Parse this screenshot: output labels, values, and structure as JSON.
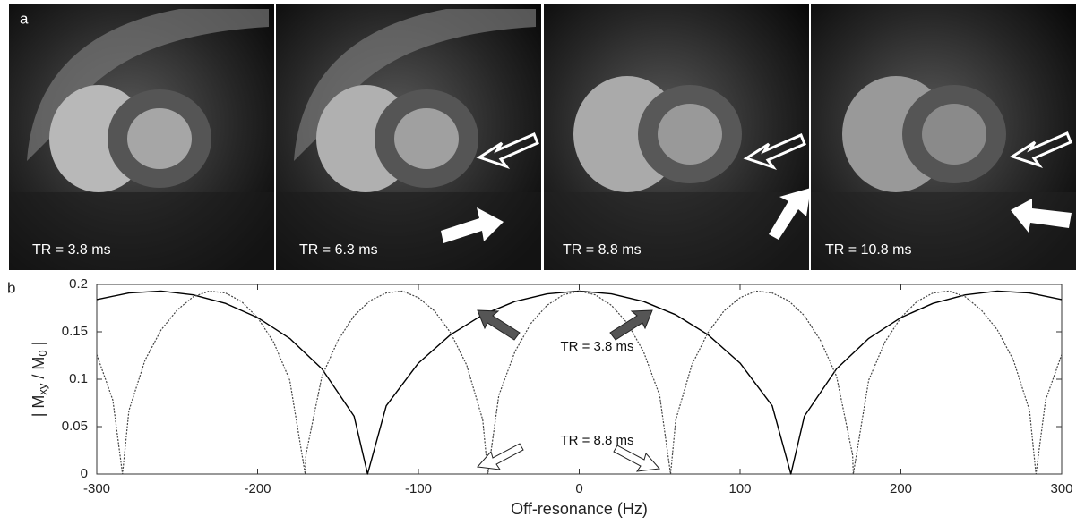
{
  "figure": {
    "panel_a_label": "a",
    "panel_b_label": "b",
    "captions": [
      "TR =  3.8 ms",
      "TR =  6.3 ms",
      "TR =  8.8 ms",
      "TR =  10.8 ms"
    ]
  },
  "chart_data": {
    "type": "line",
    "xlabel": "Off-resonance (Hz)",
    "ylabel": [
      "| M",
      "xy",
      " / M",
      "0",
      " |"
    ],
    "xlim": [
      -300,
      300
    ],
    "xticks": [
      -300,
      -200,
      -100,
      0,
      100,
      200,
      300
    ],
    "ylim": [
      0,
      0.2
    ],
    "yticks": [
      0,
      0.05,
      0.1,
      0.15,
      0.2
    ],
    "grid": false,
    "annotations": [
      "TR = 3.8 ms",
      "TR = 8.8 ms"
    ],
    "series": [
      {
        "color": "#000000",
        "dash": false,
        "x": [
          -300,
          -280,
          -260,
          -240,
          -220,
          -200,
          -180,
          -160,
          -140,
          -131.6,
          -120,
          -100,
          -80,
          -60,
          -40,
          -20,
          0,
          20,
          40,
          60,
          80,
          100,
          120,
          131.6,
          140,
          160,
          180,
          200,
          220,
          240,
          260,
          280,
          300
        ],
        "values": [
          0.184,
          0.191,
          0.193,
          0.189,
          0.18,
          0.165,
          0.143,
          0.111,
          0.061,
          0,
          0.072,
          0.117,
          0.147,
          0.168,
          0.182,
          0.19,
          0.193,
          0.19,
          0.182,
          0.168,
          0.147,
          0.117,
          0.072,
          0,
          0.061,
          0.111,
          0.143,
          0.165,
          0.18,
          0.189,
          0.193,
          0.191,
          0.184
        ]
      },
      {
        "color": "#444444",
        "dash": true,
        "x": [
          -300,
          -290,
          -284,
          -280,
          -270,
          -260,
          -250,
          -240,
          -230,
          -220,
          -210,
          -200,
          -190,
          -180,
          -170.4,
          -170,
          -160,
          -150,
          -140,
          -130,
          -120,
          -110,
          -100,
          -90,
          -80,
          -70,
          -60,
          -56.8,
          -50,
          -40,
          -30,
          -20,
          -10,
          0,
          10,
          20,
          30,
          40,
          50,
          56.8,
          60,
          70,
          80,
          90,
          100,
          110,
          120,
          130,
          140,
          150,
          160,
          170,
          170.4,
          180,
          190,
          200,
          210,
          220,
          230,
          240,
          250,
          260,
          270,
          280,
          284,
          290,
          300
        ],
        "values": [
          0.126,
          0.078,
          0,
          0.067,
          0.12,
          0.152,
          0.173,
          0.187,
          0.193,
          0.191,
          0.182,
          0.165,
          0.139,
          0.099,
          0,
          0.02,
          0.103,
          0.141,
          0.167,
          0.183,
          0.191,
          0.193,
          0.186,
          0.172,
          0.149,
          0.115,
          0.057,
          0,
          0.083,
          0.129,
          0.159,
          0.178,
          0.189,
          0.193,
          0.189,
          0.178,
          0.159,
          0.129,
          0.083,
          0,
          0.057,
          0.115,
          0.149,
          0.172,
          0.186,
          0.193,
          0.191,
          0.183,
          0.167,
          0.141,
          0.103,
          0.02,
          0,
          0.099,
          0.139,
          0.165,
          0.182,
          0.191,
          0.193,
          0.187,
          0.173,
          0.152,
          0.12,
          0.067,
          0,
          0.078,
          0.126
        ]
      }
    ]
  }
}
